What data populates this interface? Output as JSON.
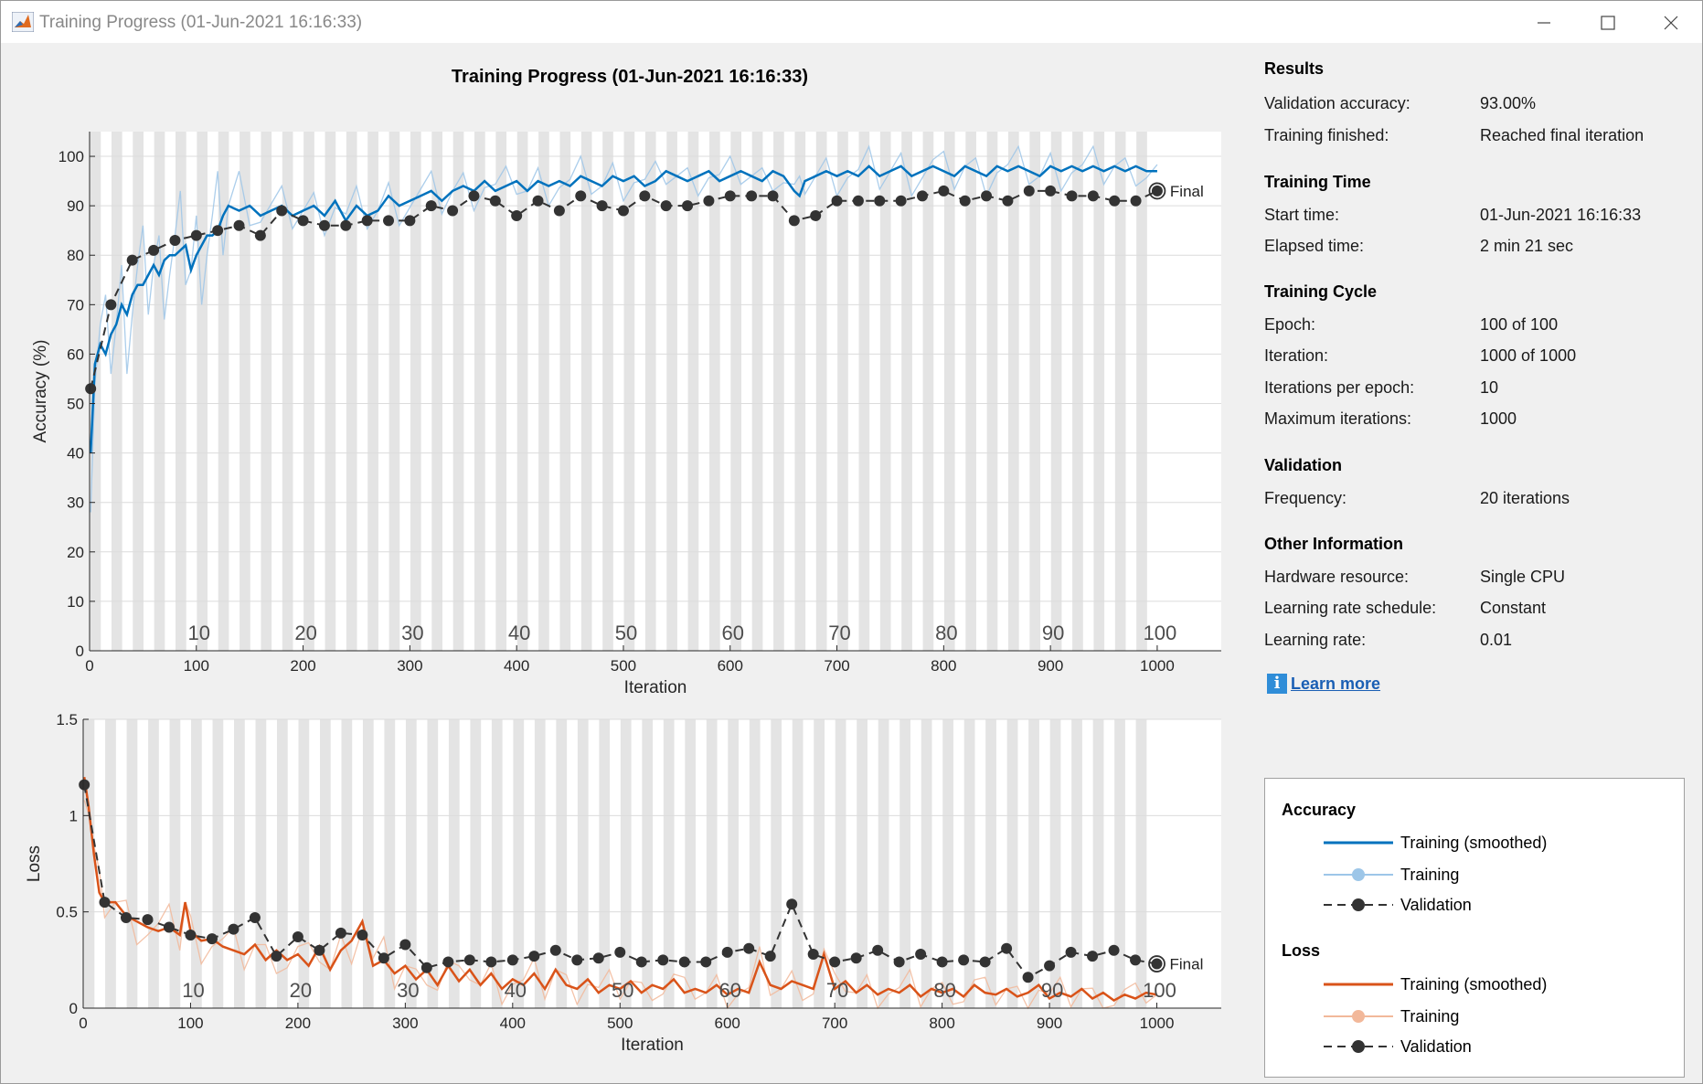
{
  "window": {
    "title": "Training Progress (01-Jun-2021 16:16:33)"
  },
  "figure_title": "Training Progress (01-Jun-2021 16:16:33)",
  "colors": {
    "acc": "#0072bd",
    "acc_light": "#9dc6e8",
    "loss": "#d95319",
    "loss_light": "#f2b89a",
    "val": "#333333"
  },
  "results": {
    "heading": "Results",
    "rows": [
      {
        "label": "Validation accuracy:",
        "value": "93.00%"
      },
      {
        "label": "Training finished:",
        "value": "Reached final iteration"
      }
    ]
  },
  "training_time": {
    "heading": "Training Time",
    "rows": [
      {
        "label": "Start time:",
        "value": "01-Jun-2021 16:16:33"
      },
      {
        "label": "Elapsed time:",
        "value": "2 min 21 sec"
      }
    ]
  },
  "training_cycle": {
    "heading": "Training Cycle",
    "rows": [
      {
        "label": "Epoch:",
        "value": "100 of 100"
      },
      {
        "label": "Iteration:",
        "value": "1000 of 1000"
      },
      {
        "label": "Iterations per epoch:",
        "value": "10"
      },
      {
        "label": "Maximum iterations:",
        "value": "1000"
      }
    ]
  },
  "validation": {
    "heading": "Validation",
    "rows": [
      {
        "label": "Frequency:",
        "value": "20 iterations"
      }
    ]
  },
  "other_info": {
    "heading": "Other Information",
    "rows": [
      {
        "label": "Hardware resource:",
        "value": "Single CPU"
      },
      {
        "label": "Learning rate schedule:",
        "value": "Constant"
      },
      {
        "label": "Learning rate:",
        "value": "0.01"
      }
    ]
  },
  "learn_more": "Learn more",
  "legend": {
    "accuracy_heading": "Accuracy",
    "loss_heading": "Loss",
    "smoothed": "Training (smoothed)",
    "training": "Training",
    "validation": "Validation"
  },
  "chart_data": [
    {
      "type": "line",
      "ylabel": "Accuracy (%)",
      "xlabel": "Iteration",
      "xlim": [
        0,
        1060
      ],
      "ylim": [
        0,
        105
      ],
      "xticks": [
        0,
        100,
        200,
        300,
        400,
        500,
        600,
        700,
        800,
        900,
        1000
      ],
      "yticks": [
        0,
        10,
        20,
        30,
        40,
        50,
        60,
        70,
        80,
        90,
        100
      ],
      "epoch_labels": [
        "10",
        "20",
        "30",
        "40",
        "50",
        "60",
        "70",
        "80",
        "90",
        "100"
      ],
      "final_label": "Final",
      "final_point": [
        1000,
        93
      ],
      "smoothed": [
        [
          1,
          40
        ],
        [
          5,
          58
        ],
        [
          10,
          62
        ],
        [
          15,
          60
        ],
        [
          20,
          64
        ],
        [
          25,
          66
        ],
        [
          30,
          70
        ],
        [
          35,
          68
        ],
        [
          40,
          72
        ],
        [
          45,
          74
        ],
        [
          50,
          74
        ],
        [
          55,
          76
        ],
        [
          60,
          78
        ],
        [
          65,
          76
        ],
        [
          70,
          79
        ],
        [
          75,
          80
        ],
        [
          80,
          80
        ],
        [
          85,
          81
        ],
        [
          90,
          82
        ],
        [
          95,
          77
        ],
        [
          100,
          80
        ],
        [
          105,
          82
        ],
        [
          110,
          84
        ],
        [
          115,
          84
        ],
        [
          120,
          85
        ],
        [
          125,
          88
        ],
        [
          130,
          90
        ],
        [
          140,
          89
        ],
        [
          150,
          90
        ],
        [
          160,
          88
        ],
        [
          170,
          89
        ],
        [
          180,
          90
        ],
        [
          190,
          88
        ],
        [
          200,
          89
        ],
        [
          210,
          90
        ],
        [
          220,
          88
        ],
        [
          230,
          91
        ],
        [
          240,
          87
        ],
        [
          250,
          90
        ],
        [
          260,
          88
        ],
        [
          270,
          89
        ],
        [
          280,
          92
        ],
        [
          290,
          90
        ],
        [
          300,
          91
        ],
        [
          310,
          92
        ],
        [
          320,
          93
        ],
        [
          330,
          91
        ],
        [
          340,
          93
        ],
        [
          350,
          94
        ],
        [
          360,
          93
        ],
        [
          370,
          95
        ],
        [
          380,
          93
        ],
        [
          390,
          94
        ],
        [
          400,
          95
        ],
        [
          410,
          93
        ],
        [
          420,
          95
        ],
        [
          430,
          94
        ],
        [
          440,
          95
        ],
        [
          450,
          94
        ],
        [
          460,
          96
        ],
        [
          470,
          95
        ],
        [
          480,
          94
        ],
        [
          490,
          96
        ],
        [
          500,
          95
        ],
        [
          510,
          96
        ],
        [
          520,
          94
        ],
        [
          530,
          95
        ],
        [
          540,
          97
        ],
        [
          550,
          96
        ],
        [
          560,
          95
        ],
        [
          570,
          96
        ],
        [
          580,
          97
        ],
        [
          590,
          95
        ],
        [
          600,
          96
        ],
        [
          610,
          97
        ],
        [
          620,
          96
        ],
        [
          630,
          95
        ],
        [
          640,
          97
        ],
        [
          650,
          96
        ],
        [
          660,
          93
        ],
        [
          665,
          92
        ],
        [
          670,
          95
        ],
        [
          680,
          96
        ],
        [
          690,
          97
        ],
        [
          700,
          96
        ],
        [
          710,
          97
        ],
        [
          720,
          96
        ],
        [
          730,
          98
        ],
        [
          740,
          96
        ],
        [
          750,
          97
        ],
        [
          760,
          98
        ],
        [
          770,
          96
        ],
        [
          780,
          97
        ],
        [
          790,
          98
        ],
        [
          800,
          97
        ],
        [
          810,
          96
        ],
        [
          820,
          98
        ],
        [
          830,
          97
        ],
        [
          840,
          96
        ],
        [
          850,
          98
        ],
        [
          860,
          97
        ],
        [
          870,
          98
        ],
        [
          880,
          97
        ],
        [
          890,
          96
        ],
        [
          900,
          98
        ],
        [
          910,
          97
        ],
        [
          920,
          98
        ],
        [
          930,
          97
        ],
        [
          940,
          98
        ],
        [
          950,
          97
        ],
        [
          960,
          98
        ],
        [
          970,
          97
        ],
        [
          980,
          98
        ],
        [
          990,
          97
        ],
        [
          1000,
          97
        ]
      ],
      "validation": [
        [
          1,
          53
        ],
        [
          20,
          70
        ],
        [
          40,
          79
        ],
        [
          60,
          81
        ],
        [
          80,
          83
        ],
        [
          100,
          84
        ],
        [
          120,
          85
        ],
        [
          140,
          86
        ],
        [
          160,
          84
        ],
        [
          180,
          89
        ],
        [
          200,
          87
        ],
        [
          220,
          86
        ],
        [
          240,
          86
        ],
        [
          260,
          87
        ],
        [
          280,
          87
        ],
        [
          300,
          87
        ],
        [
          320,
          90
        ],
        [
          340,
          89
        ],
        [
          360,
          92
        ],
        [
          380,
          91
        ],
        [
          400,
          88
        ],
        [
          420,
          91
        ],
        [
          440,
          89
        ],
        [
          460,
          92
        ],
        [
          480,
          90
        ],
        [
          500,
          89
        ],
        [
          520,
          92
        ],
        [
          540,
          90
        ],
        [
          560,
          90
        ],
        [
          580,
          91
        ],
        [
          600,
          92
        ],
        [
          620,
          92
        ],
        [
          640,
          92
        ],
        [
          660,
          87
        ],
        [
          680,
          88
        ],
        [
          700,
          91
        ],
        [
          720,
          91
        ],
        [
          740,
          91
        ],
        [
          760,
          91
        ],
        [
          780,
          92
        ],
        [
          800,
          93
        ],
        [
          820,
          91
        ],
        [
          840,
          92
        ],
        [
          860,
          91
        ],
        [
          880,
          93
        ],
        [
          900,
          93
        ],
        [
          920,
          92
        ],
        [
          940,
          92
        ],
        [
          960,
          91
        ],
        [
          980,
          91
        ],
        [
          1000,
          93
        ]
      ]
    },
    {
      "type": "line",
      "ylabel": "Loss",
      "xlabel": "Iteration",
      "xlim": [
        0,
        1060
      ],
      "ylim": [
        0,
        1.5
      ],
      "xticks": [
        0,
        100,
        200,
        300,
        400,
        500,
        600,
        700,
        800,
        900,
        1000
      ],
      "yticks": [
        0,
        0.5,
        1,
        1.5
      ],
      "ytick_labels": [
        "0",
        "0.5",
        "1",
        "1.5"
      ],
      "epoch_labels": [
        "10",
        "20",
        "30",
        "40",
        "50",
        "60",
        "70",
        "80",
        "90",
        "100"
      ],
      "final_label": "Final",
      "final_point": [
        1000,
        0.23
      ],
      "smoothed": [
        [
          1,
          1.2
        ],
        [
          5,
          1.05
        ],
        [
          10,
          0.8
        ],
        [
          15,
          0.6
        ],
        [
          20,
          0.55
        ],
        [
          30,
          0.55
        ],
        [
          40,
          0.48
        ],
        [
          50,
          0.45
        ],
        [
          60,
          0.42
        ],
        [
          70,
          0.4
        ],
        [
          80,
          0.42
        ],
        [
          90,
          0.38
        ],
        [
          95,
          0.55
        ],
        [
          100,
          0.4
        ],
        [
          110,
          0.35
        ],
        [
          120,
          0.36
        ],
        [
          130,
          0.32
        ],
        [
          140,
          0.3
        ],
        [
          150,
          0.28
        ],
        [
          160,
          0.33
        ],
        [
          170,
          0.25
        ],
        [
          180,
          0.3
        ],
        [
          190,
          0.25
        ],
        [
          200,
          0.28
        ],
        [
          210,
          0.22
        ],
        [
          220,
          0.32
        ],
        [
          230,
          0.2
        ],
        [
          240,
          0.3
        ],
        [
          250,
          0.35
        ],
        [
          260,
          0.45
        ],
        [
          270,
          0.22
        ],
        [
          280,
          0.25
        ],
        [
          290,
          0.18
        ],
        [
          300,
          0.22
        ],
        [
          310,
          0.15
        ],
        [
          320,
          0.2
        ],
        [
          330,
          0.12
        ],
        [
          340,
          0.22
        ],
        [
          350,
          0.14
        ],
        [
          360,
          0.2
        ],
        [
          370,
          0.12
        ],
        [
          380,
          0.18
        ],
        [
          390,
          0.1
        ],
        [
          400,
          0.15
        ],
        [
          410,
          0.12
        ],
        [
          420,
          0.18
        ],
        [
          430,
          0.1
        ],
        [
          440,
          0.2
        ],
        [
          450,
          0.12
        ],
        [
          460,
          0.1
        ],
        [
          470,
          0.15
        ],
        [
          480,
          0.08
        ],
        [
          490,
          0.12
        ],
        [
          500,
          0.1
        ],
        [
          510,
          0.14
        ],
        [
          520,
          0.08
        ],
        [
          530,
          0.12
        ],
        [
          540,
          0.1
        ],
        [
          550,
          0.15
        ],
        [
          560,
          0.08
        ],
        [
          570,
          0.1
        ],
        [
          580,
          0.08
        ],
        [
          590,
          0.12
        ],
        [
          600,
          0.07
        ],
        [
          610,
          0.1
        ],
        [
          620,
          0.08
        ],
        [
          630,
          0.24
        ],
        [
          640,
          0.12
        ],
        [
          650,
          0.1
        ],
        [
          660,
          0.14
        ],
        [
          670,
          0.12
        ],
        [
          680,
          0.1
        ],
        [
          690,
          0.28
        ],
        [
          700,
          0.1
        ],
        [
          710,
          0.14
        ],
        [
          720,
          0.08
        ],
        [
          730,
          0.12
        ],
        [
          740,
          0.07
        ],
        [
          750,
          0.1
        ],
        [
          760,
          0.08
        ],
        [
          770,
          0.12
        ],
        [
          780,
          0.06
        ],
        [
          790,
          0.1
        ],
        [
          800,
          0.08
        ],
        [
          810,
          0.1
        ],
        [
          820,
          0.06
        ],
        [
          830,
          0.12
        ],
        [
          840,
          0.08
        ],
        [
          850,
          0.07
        ],
        [
          860,
          0.1
        ],
        [
          870,
          0.06
        ],
        [
          880,
          0.08
        ],
        [
          890,
          0.12
        ],
        [
          900,
          0.05
        ],
        [
          910,
          0.08
        ],
        [
          920,
          0.06
        ],
        [
          930,
          0.1
        ],
        [
          940,
          0.05
        ],
        [
          950,
          0.08
        ],
        [
          960,
          0.04
        ],
        [
          970,
          0.07
        ],
        [
          980,
          0.05
        ],
        [
          990,
          0.08
        ],
        [
          1000,
          0.07
        ]
      ],
      "validation": [
        [
          1,
          1.16
        ],
        [
          20,
          0.55
        ],
        [
          40,
          0.47
        ],
        [
          60,
          0.46
        ],
        [
          80,
          0.42
        ],
        [
          100,
          0.38
        ],
        [
          120,
          0.36
        ],
        [
          140,
          0.41
        ],
        [
          160,
          0.47
        ],
        [
          180,
          0.27
        ],
        [
          200,
          0.37
        ],
        [
          220,
          0.3
        ],
        [
          240,
          0.39
        ],
        [
          260,
          0.38
        ],
        [
          280,
          0.26
        ],
        [
          300,
          0.33
        ],
        [
          320,
          0.21
        ],
        [
          340,
          0.24
        ],
        [
          360,
          0.25
        ],
        [
          380,
          0.24
        ],
        [
          400,
          0.25
        ],
        [
          420,
          0.27
        ],
        [
          440,
          0.3
        ],
        [
          460,
          0.25
        ],
        [
          480,
          0.26
        ],
        [
          500,
          0.29
        ],
        [
          520,
          0.24
        ],
        [
          540,
          0.25
        ],
        [
          560,
          0.24
        ],
        [
          580,
          0.24
        ],
        [
          600,
          0.29
        ],
        [
          620,
          0.31
        ],
        [
          640,
          0.27
        ],
        [
          660,
          0.54
        ],
        [
          680,
          0.28
        ],
        [
          700,
          0.24
        ],
        [
          720,
          0.26
        ],
        [
          740,
          0.3
        ],
        [
          760,
          0.24
        ],
        [
          780,
          0.28
        ],
        [
          800,
          0.24
        ],
        [
          820,
          0.25
        ],
        [
          840,
          0.24
        ],
        [
          860,
          0.31
        ],
        [
          880,
          0.16
        ],
        [
          900,
          0.22
        ],
        [
          920,
          0.29
        ],
        [
          940,
          0.27
        ],
        [
          960,
          0.3
        ],
        [
          980,
          0.25
        ],
        [
          1000,
          0.23
        ]
      ]
    }
  ]
}
